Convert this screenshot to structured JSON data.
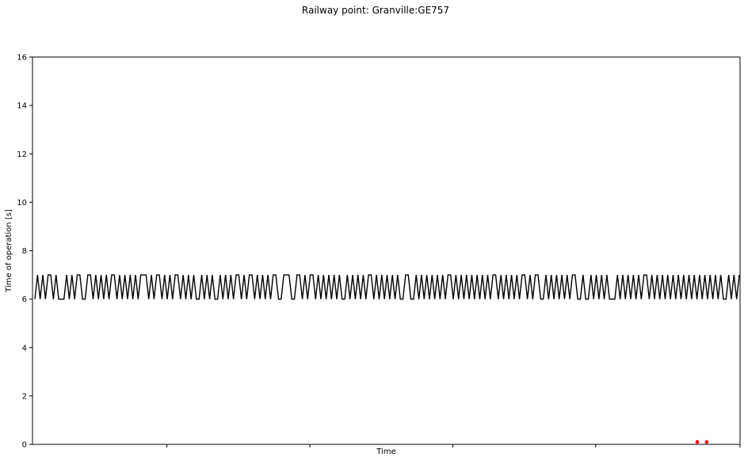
{
  "chart_data": {
    "type": "line",
    "title": "Railway point: Granville:GE757",
    "xlabel": "Time",
    "ylabel": "Time of operation [s]",
    "ylim": [
      0,
      16
    ],
    "yticks": [
      0,
      2,
      4,
      6,
      8,
      10,
      12,
      14,
      16
    ],
    "xticks_count": 5,
    "xtick_labels": [],
    "grid": false,
    "legend": "none",
    "line_color": "#000000",
    "marker_color": "#ff0000",
    "series": [
      {
        "values": [
          6,
          7,
          6,
          7,
          6,
          7,
          7,
          6,
          7,
          6,
          6,
          6,
          7,
          6,
          7,
          6,
          7,
          7,
          6,
          6,
          7,
          7,
          6,
          7,
          6,
          7,
          6,
          7,
          6,
          7,
          7,
          6,
          7,
          6,
          7,
          6,
          7,
          6,
          7,
          6,
          7,
          7,
          7,
          6,
          7,
          6,
          7,
          7,
          6,
          7,
          6,
          7,
          6,
          7,
          7,
          6,
          7,
          6,
          7,
          6,
          7,
          6,
          6,
          7,
          6,
          7,
          6,
          7,
          6,
          6,
          7,
          6,
          7,
          6,
          7,
          6,
          7,
          7,
          6,
          7,
          6,
          7,
          7,
          6,
          7,
          6,
          7,
          6,
          7,
          6,
          7,
          7,
          6,
          6,
          7,
          7,
          7,
          6,
          6,
          7,
          7,
          6,
          7,
          6,
          7,
          7,
          6,
          7,
          6,
          7,
          6,
          7,
          6,
          7,
          6,
          7,
          6,
          6,
          7,
          6,
          7,
          6,
          7,
          6,
          7,
          6,
          7,
          7,
          6,
          7,
          6,
          7,
          6,
          7,
          6,
          7,
          6,
          7,
          6,
          6,
          7,
          7,
          6,
          6,
          7,
          6,
          7,
          6,
          7,
          6,
          7,
          6,
          7,
          6,
          7,
          6,
          7,
          7,
          6,
          7,
          6,
          7,
          6,
          7,
          6,
          7,
          6,
          7,
          6,
          7,
          6,
          7,
          6,
          7,
          7,
          6,
          7,
          6,
          7,
          6,
          7,
          6,
          7,
          6,
          7,
          7,
          6,
          7,
          6,
          7,
          7,
          6,
          6,
          7,
          6,
          7,
          6,
          7,
          6,
          7,
          6,
          7,
          6,
          7,
          7,
          6,
          6,
          7,
          6,
          6,
          7,
          6,
          7,
          6,
          7,
          6,
          7,
          6,
          6,
          6,
          7,
          6,
          7,
          6,
          7,
          6,
          7,
          6,
          7,
          6,
          7,
          7,
          6,
          7,
          6,
          7,
          6,
          7,
          6,
          7,
          6,
          7,
          6,
          7,
          6,
          7,
          6,
          7,
          6,
          7,
          6,
          7,
          6,
          7,
          6,
          7,
          6,
          7,
          6,
          7,
          6,
          6,
          7,
          6,
          7,
          6,
          7
        ]
      }
    ],
    "anomalies": [
      {
        "x_frac": 0.9395,
        "y": 0.1
      },
      {
        "x_frac": 0.9528,
        "y": 0.1
      }
    ]
  }
}
